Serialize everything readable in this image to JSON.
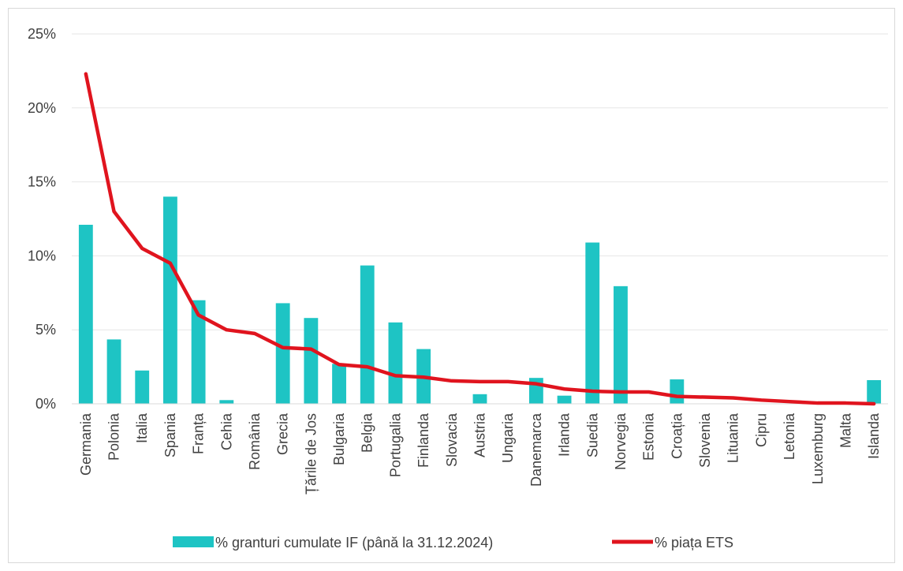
{
  "chart_data": {
    "type": "bar",
    "categories": [
      "Germania",
      "Polonia",
      "Italia",
      "Spania",
      "Franța",
      "Cehia",
      "România",
      "Grecia",
      "Țările de Jos",
      "Bulgaria",
      "Belgia",
      "Portugalia",
      "Finlanda",
      "Slovacia",
      "Austria",
      "Ungaria",
      "Danemarca",
      "Irlanda",
      "Suedia",
      "Norvegia",
      "Estonia",
      "Croația",
      "Slovenia",
      "Lituania",
      "Cipru",
      "Letonia",
      "Luxemburg",
      "Malta",
      "Islanda"
    ],
    "series": [
      {
        "name": "% granturi cumulate IF (până la 31.12.2024)",
        "type": "bar",
        "color": "#1ec4c4",
        "values": [
          12.1,
          4.35,
          2.25,
          14.0,
          7.0,
          0.25,
          0.0,
          6.8,
          5.8,
          2.7,
          9.35,
          5.5,
          3.7,
          0.0,
          0.65,
          0.0,
          1.75,
          0.55,
          10.9,
          7.95,
          0.0,
          1.65,
          0.0,
          0.0,
          0.0,
          0.0,
          0.0,
          0.0,
          1.6
        ]
      },
      {
        "name": "% piața ETS",
        "type": "line",
        "color": "#e0141e",
        "values": [
          22.3,
          13.0,
          10.5,
          9.5,
          6.0,
          5.0,
          4.75,
          3.8,
          3.7,
          2.65,
          2.5,
          1.9,
          1.8,
          1.55,
          1.5,
          1.5,
          1.35,
          1.0,
          0.85,
          0.8,
          0.8,
          0.5,
          0.45,
          0.4,
          0.25,
          0.15,
          0.05,
          0.05,
          0.0
        ]
      }
    ],
    "y_ticks": [
      "0%",
      "5%",
      "10%",
      "15%",
      "20%",
      "25%"
    ],
    "ylim": [
      0,
      25
    ],
    "grid": true,
    "legend_position": "bottom"
  }
}
